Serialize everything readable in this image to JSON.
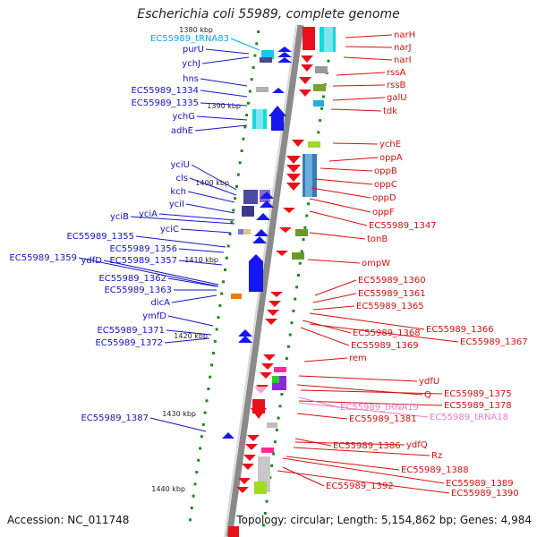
{
  "title": "Escherichia coli 55989, complete genome",
  "footer": {
    "accession": "Accession: NC_011748",
    "summary": "Topology: circular; Length: 5,154,862 bp; Genes: 4,984"
  },
  "colors": {
    "left_label": "#1515c8",
    "right_label": "#d81010",
    "trna_left": "#00aaff",
    "trna_right": "#f07ac8",
    "axis": "#8a8a8a",
    "ticks": "#1a8a1a"
  },
  "kbp_ticks": [
    "1380 kbp",
    "1390 kbp",
    "1400 kbp",
    "1410 kbp",
    "1420 kbp",
    "1430 kbp",
    "1440 kbp"
  ],
  "left_labels": [
    "EC55989_tRNA83",
    "purU",
    "ychJ",
    "hns",
    "EC55989_1334",
    "EC55989_1335",
    "ychG",
    "adhE",
    "yciU",
    "cls",
    "kch",
    "yciI",
    "yciA",
    "yciB",
    "yciC",
    "EC55989_1355",
    "EC55989_1356",
    "EC55989_1357",
    "EC55989_1359",
    "ydfD",
    "EC55989_1362",
    "EC55989_1363",
    "dicA",
    "ymfD",
    "EC55989_1371",
    "EC55989_1372",
    "EC55989_1387"
  ],
  "right_labels": [
    "narH",
    "narJ",
    "narI",
    "rssA",
    "rssB",
    "galU",
    "tdk",
    "ychE",
    "oppA",
    "oppB",
    "oppC",
    "oppD",
    "oppF",
    "EC55989_1347",
    "tonB",
    "ompW",
    "EC55989_1360",
    "EC55989_1361",
    "EC55989_1365",
    "EC55989_1366",
    "EC55989_1368",
    "EC55989_1367",
    "EC55989_1369",
    "rem",
    "ydfU",
    "Q",
    "EC55989_1375",
    "EC55989_1378",
    "EC55989_tRNA19",
    "EC55989_tRNA18",
    "EC55989_1381",
    "EC55989_1386",
    "ydfQ",
    "Rz",
    "EC55989_1388",
    "EC55989_1389",
    "EC55989_1392",
    "EC55989_1390"
  ]
}
